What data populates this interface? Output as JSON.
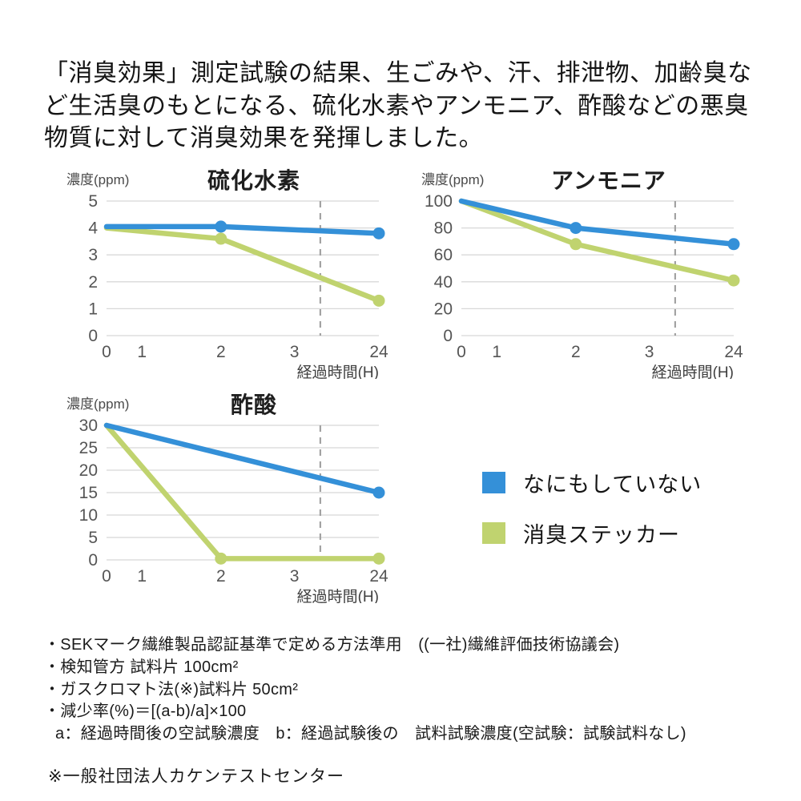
{
  "header": {
    "text": "「消臭効果」測定試験の結果、生ごみや、汗、排泄物、加齢臭など生活臭のもとになる、硫化水素やアンモニア、酢酸などの悪臭物質に対して消臭効果を発揮しました。"
  },
  "colors": {
    "blue": "#3490d8",
    "green": "#c0d36f",
    "grid": "#d8d8d8",
    "dash": "#a3a3a3"
  },
  "legend": {
    "items": [
      {
        "label": "なにもしていない",
        "color": "blue"
      },
      {
        "label": "消臭ステッカー",
        "color": "green"
      }
    ]
  },
  "chart_data": [
    {
      "type": "line",
      "title": "硫化水素",
      "ylabel": "濃度(ppm)",
      "xlabel": "経過時間(H)",
      "ylim": [
        0,
        5
      ],
      "yticks": [
        5,
        4,
        3,
        2,
        1,
        0
      ],
      "xticks": [
        "0",
        "1",
        "2",
        "3",
        "24"
      ],
      "x_fractions": {
        "0": 0,
        "1": 0.13,
        "2": 0.42,
        "3": 0.69,
        "24": 1
      },
      "dashed_x_fraction": 0.785,
      "series": [
        {
          "name": "消臭ステッカー",
          "color": "green",
          "points": [
            {
              "x": 0,
              "y": 4.0
            },
            {
              "x": 2,
              "y": 3.6,
              "dot": true
            },
            {
              "x": 24,
              "y": 1.3,
              "dot": true
            }
          ]
        },
        {
          "name": "なにもしていない",
          "color": "blue",
          "points": [
            {
              "x": 0,
              "y": 4.05
            },
            {
              "x": 2,
              "y": 4.05,
              "dot": true
            },
            {
              "x": 24,
              "y": 3.8,
              "dot": true
            }
          ]
        }
      ]
    },
    {
      "type": "line",
      "title": "アンモニア",
      "ylabel": "濃度(ppm)",
      "xlabel": "経過時間(H)",
      "ylim": [
        0,
        100
      ],
      "yticks": [
        100,
        80,
        60,
        40,
        20,
        0
      ],
      "xticks": [
        "0",
        "1",
        "2",
        "3",
        "24"
      ],
      "x_fractions": {
        "0": 0,
        "1": 0.13,
        "2": 0.42,
        "3": 0.69,
        "24": 1
      },
      "dashed_x_fraction": 0.785,
      "series": [
        {
          "name": "消臭ステッカー",
          "color": "green",
          "points": [
            {
              "x": 0,
              "y": 100
            },
            {
              "x": 2,
              "y": 68,
              "dot": true
            },
            {
              "x": 24,
              "y": 41,
              "dot": true
            }
          ]
        },
        {
          "name": "なにもしていない",
          "color": "blue",
          "points": [
            {
              "x": 0,
              "y": 100
            },
            {
              "x": 2,
              "y": 80,
              "dot": true
            },
            {
              "x": 24,
              "y": 68,
              "dot": true
            }
          ]
        }
      ]
    },
    {
      "type": "line",
      "title": "酢酸",
      "ylabel": "濃度(ppm)",
      "xlabel": "経過時間(H)",
      "ylim": [
        0,
        30
      ],
      "yticks": [
        30,
        25,
        20,
        15,
        10,
        5,
        0
      ],
      "xticks": [
        "0",
        "1",
        "2",
        "3",
        "24"
      ],
      "x_fractions": {
        "0": 0,
        "1": 0.13,
        "2": 0.42,
        "3": 0.69,
        "24": 1
      },
      "dashed_x_fraction": 0.785,
      "series": [
        {
          "name": "消臭ステッカー",
          "color": "green",
          "points": [
            {
              "x": 0,
              "y": 30
            },
            {
              "x": 2,
              "y": 0.3,
              "dot": true
            },
            {
              "x": 24,
              "y": 0.3,
              "dot": true
            }
          ]
        },
        {
          "name": "なにもしていない",
          "color": "blue",
          "points": [
            {
              "x": 0,
              "y": 30
            },
            {
              "x": 24,
              "y": 15,
              "dot": true
            }
          ]
        }
      ]
    }
  ],
  "footer": {
    "notes": [
      "・SEKマーク繊維製品認証基準で定める方法準用　((一社)繊維評価技術協議会)",
      "・検知管方 試料片 100cm²",
      "・ガスクロマト法(※)試料片 50cm²",
      "・減少率(%)＝[(a-b)/a]×100",
      "a：経過時間後の空試験濃度　b：経過試験後の　試料試験濃度(空試験：試験試料なし)"
    ],
    "certifier": "※一般社団法人カケンテストセンター"
  }
}
